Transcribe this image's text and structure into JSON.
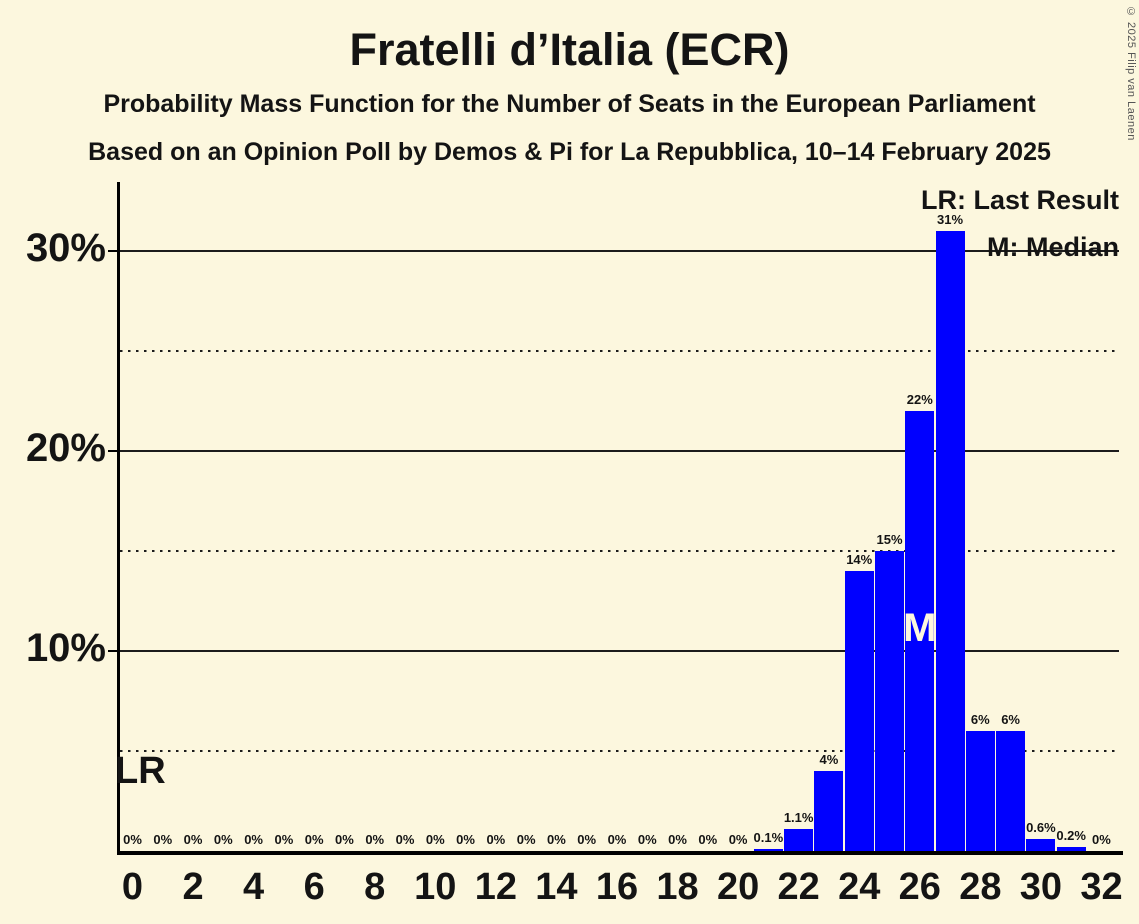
{
  "page": {
    "copyright": "© 2025 Filip van Laenen"
  },
  "chart_data": {
    "type": "bar",
    "title": "Fratelli d’Italia (ECR)",
    "subtitle_lines": [
      "Probability Mass Function for the Number of Seats in the European Parliament",
      "Based on an Opinion Poll by Demos & Pi for La Repubblica, 10–14 February 2025"
    ],
    "categories": [
      0,
      1,
      2,
      3,
      4,
      5,
      6,
      7,
      8,
      9,
      10,
      11,
      12,
      13,
      14,
      15,
      16,
      17,
      18,
      19,
      20,
      21,
      22,
      23,
      24,
      25,
      26,
      27,
      28,
      29,
      30,
      31,
      32
    ],
    "values": [
      0,
      0,
      0,
      0,
      0,
      0,
      0,
      0,
      0,
      0,
      0,
      0,
      0,
      0,
      0,
      0,
      0,
      0,
      0,
      0,
      0,
      0.1,
      1.1,
      4,
      14,
      15,
      22,
      31,
      6,
      6,
      0.6,
      0.2,
      0
    ],
    "bar_labels": [
      "0%",
      "0%",
      "0%",
      "0%",
      "0%",
      "0%",
      "0%",
      "0%",
      "0%",
      "0%",
      "0%",
      "0%",
      "0%",
      "0%",
      "0%",
      "0%",
      "0%",
      "0%",
      "0%",
      "0%",
      "0%",
      "0.1%",
      "1.1%",
      "4%",
      "14%",
      "15%",
      "22%",
      "31%",
      "6%",
      "6%",
      "0.6%",
      "0.2%",
      "0%"
    ],
    "xtick_labels": [
      "0",
      "2",
      "4",
      "6",
      "8",
      "10",
      "12",
      "14",
      "16",
      "18",
      "20",
      "22",
      "24",
      "26",
      "28",
      "30",
      "32"
    ],
    "xtick_step": 2,
    "ytick_labels": [
      "10%",
      "20%",
      "30%"
    ],
    "ytick_values": [
      10,
      20,
      30
    ],
    "solid_gridlines": [
      10,
      20,
      30
    ],
    "dotted_gridlines": [
      5,
      15,
      25
    ],
    "ylim": [
      0,
      33.4
    ],
    "median_category": 26,
    "median_annotation": "M",
    "lr_annotation": "LR",
    "legend_lr": "LR: Last Result",
    "legend_m": "M: Median",
    "bar_color": "#0000ff",
    "background_color": "#fcf7de",
    "legend_position": "top-right",
    "grid": "horizontal"
  }
}
